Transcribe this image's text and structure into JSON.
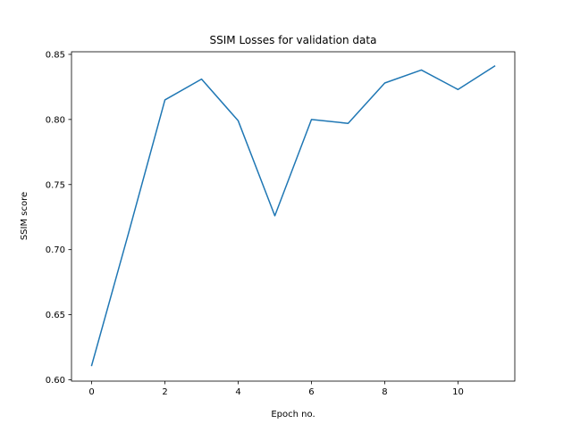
{
  "chart_data": {
    "type": "line",
    "title": "SSIM Losses for validation data",
    "xlabel": "Epoch no.",
    "ylabel": "SSIM score",
    "xlim": [
      -0.55,
      11.55
    ],
    "ylim": [
      0.599,
      0.852
    ],
    "xticks": [
      0,
      2,
      4,
      6,
      8,
      10
    ],
    "xtick_labels": [
      "0",
      "2",
      "4",
      "6",
      "8",
      "10"
    ],
    "yticks": [
      0.6,
      0.65,
      0.7,
      0.75,
      0.8,
      0.85
    ],
    "ytick_labels": [
      "0.60",
      "0.65",
      "0.70",
      "0.75",
      "0.80",
      "0.85"
    ],
    "grid": false,
    "legend": null,
    "series": [
      {
        "color": "#1f77b4",
        "x": [
          0,
          1,
          2,
          3,
          4,
          5,
          6,
          7,
          8,
          9,
          10,
          11
        ],
        "values": [
          0.611,
          0.712,
          0.815,
          0.831,
          0.799,
          0.726,
          0.8,
          0.797,
          0.828,
          0.838,
          0.823,
          0.841
        ]
      }
    ]
  }
}
